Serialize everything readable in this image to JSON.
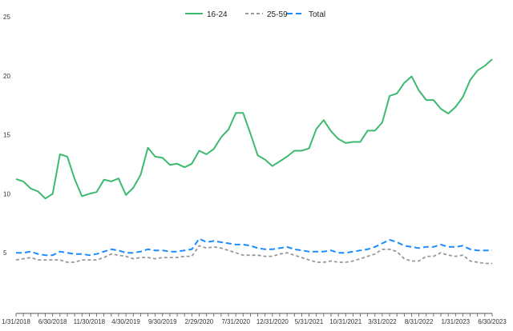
{
  "chart_data": {
    "type": "line",
    "title": "",
    "xlabel": "",
    "ylabel": "",
    "ylim": [
      0,
      25
    ],
    "yticks": [
      5,
      10,
      15,
      20,
      25
    ],
    "grid": false,
    "legend_placement": "top-center",
    "xtick_labels": [
      "1/31/2018",
      "6/30/2018",
      "11/30/2018",
      "4/30/2019",
      "9/30/2019",
      "2/29/2020",
      "7/31/2020",
      "12/31/2020",
      "5/31/2021",
      "10/31/2021",
      "3/31/2022",
      "8/31/2022",
      "1/31/2023",
      "6/30/2023"
    ],
    "x": [
      "1/31/2018",
      "2/28/2018",
      "3/31/2018",
      "4/30/2018",
      "5/31/2018",
      "6/30/2018",
      "7/31/2018",
      "8/31/2018",
      "9/30/2018",
      "10/31/2018",
      "11/30/2018",
      "12/31/2018",
      "1/31/2019",
      "2/28/2019",
      "3/31/2019",
      "4/30/2019",
      "5/31/2019",
      "6/30/2019",
      "7/31/2019",
      "8/31/2019",
      "9/30/2019",
      "10/31/2019",
      "11/30/2019",
      "12/31/2019",
      "1/31/2020",
      "2/29/2020",
      "3/31/2020",
      "4/30/2020",
      "5/31/2020",
      "6/30/2020",
      "7/31/2020",
      "8/31/2020",
      "9/30/2020",
      "10/31/2020",
      "11/30/2020",
      "12/31/2020",
      "1/31/2021",
      "2/28/2021",
      "3/31/2021",
      "4/30/2021",
      "5/31/2021",
      "6/30/2021",
      "7/31/2021",
      "8/31/2021",
      "9/30/2021",
      "10/31/2021",
      "11/30/2021",
      "12/31/2021",
      "1/31/2022",
      "2/28/2022",
      "3/31/2022",
      "4/30/2022",
      "5/31/2022",
      "6/30/2022",
      "7/31/2022",
      "8/31/2022",
      "9/30/2022",
      "10/31/2022",
      "11/30/2022",
      "12/31/2022",
      "1/31/2023",
      "2/28/2023",
      "3/31/2023",
      "4/30/2023",
      "5/31/2023",
      "6/30/2023"
    ],
    "series": [
      {
        "name": "16-24",
        "color": "#3dba6f",
        "style": "solid",
        "values": [
          11.25,
          11.05,
          10.45,
          10.2,
          9.6,
          10.0,
          13.35,
          13.15,
          11.25,
          9.8,
          10.0,
          10.15,
          11.2,
          11.05,
          11.3,
          9.9,
          10.5,
          11.6,
          13.9,
          13.15,
          13.05,
          12.45,
          12.55,
          12.25,
          12.55,
          13.65,
          13.35,
          13.8,
          14.8,
          15.45,
          16.85,
          16.85,
          15.1,
          13.25,
          12.9,
          12.35,
          12.75,
          13.15,
          13.65,
          13.65,
          13.85,
          15.5,
          16.25,
          15.3,
          14.65,
          14.3,
          14.4,
          14.4,
          15.35,
          15.35,
          16.05,
          18.3,
          18.5,
          19.4,
          19.95,
          18.75,
          17.95,
          17.95,
          17.2,
          16.8,
          17.35,
          18.2,
          19.65,
          20.45,
          20.85,
          21.4
        ]
      },
      {
        "name": "25-59",
        "color": "#999999",
        "style": "dashed",
        "values": [
          4.4,
          4.5,
          4.6,
          4.4,
          4.4,
          4.4,
          4.4,
          4.2,
          4.2,
          4.4,
          4.4,
          4.4,
          4.6,
          4.9,
          4.8,
          4.7,
          4.5,
          4.6,
          4.6,
          4.5,
          4.6,
          4.6,
          4.6,
          4.7,
          4.7,
          5.6,
          5.4,
          5.5,
          5.4,
          5.2,
          5.0,
          4.8,
          4.8,
          4.8,
          4.7,
          4.7,
          4.9,
          5.0,
          4.8,
          4.6,
          4.4,
          4.2,
          4.2,
          4.3,
          4.2,
          4.2,
          4.3,
          4.5,
          4.7,
          4.9,
          5.3,
          5.3,
          5.1,
          4.5,
          4.3,
          4.3,
          4.7,
          4.7,
          5.0,
          4.8,
          4.7,
          4.8,
          4.3,
          4.2,
          4.1,
          4.1
        ]
      },
      {
        "name": "Total",
        "color": "#1a8cff",
        "style": "dashed",
        "values": [
          5.0,
          5.0,
          5.1,
          4.9,
          4.8,
          4.8,
          5.1,
          5.0,
          4.9,
          4.9,
          4.8,
          4.9,
          5.1,
          5.3,
          5.2,
          5.0,
          5.0,
          5.1,
          5.3,
          5.2,
          5.2,
          5.1,
          5.1,
          5.2,
          5.3,
          6.2,
          5.9,
          6.0,
          5.9,
          5.8,
          5.7,
          5.7,
          5.6,
          5.4,
          5.3,
          5.3,
          5.4,
          5.5,
          5.3,
          5.2,
          5.1,
          5.1,
          5.1,
          5.2,
          5.0,
          5.0,
          5.1,
          5.2,
          5.3,
          5.5,
          5.8,
          6.1,
          5.9,
          5.6,
          5.5,
          5.4,
          5.5,
          5.5,
          5.7,
          5.5,
          5.5,
          5.6,
          5.3,
          5.2,
          5.2,
          5.2
        ]
      }
    ]
  }
}
